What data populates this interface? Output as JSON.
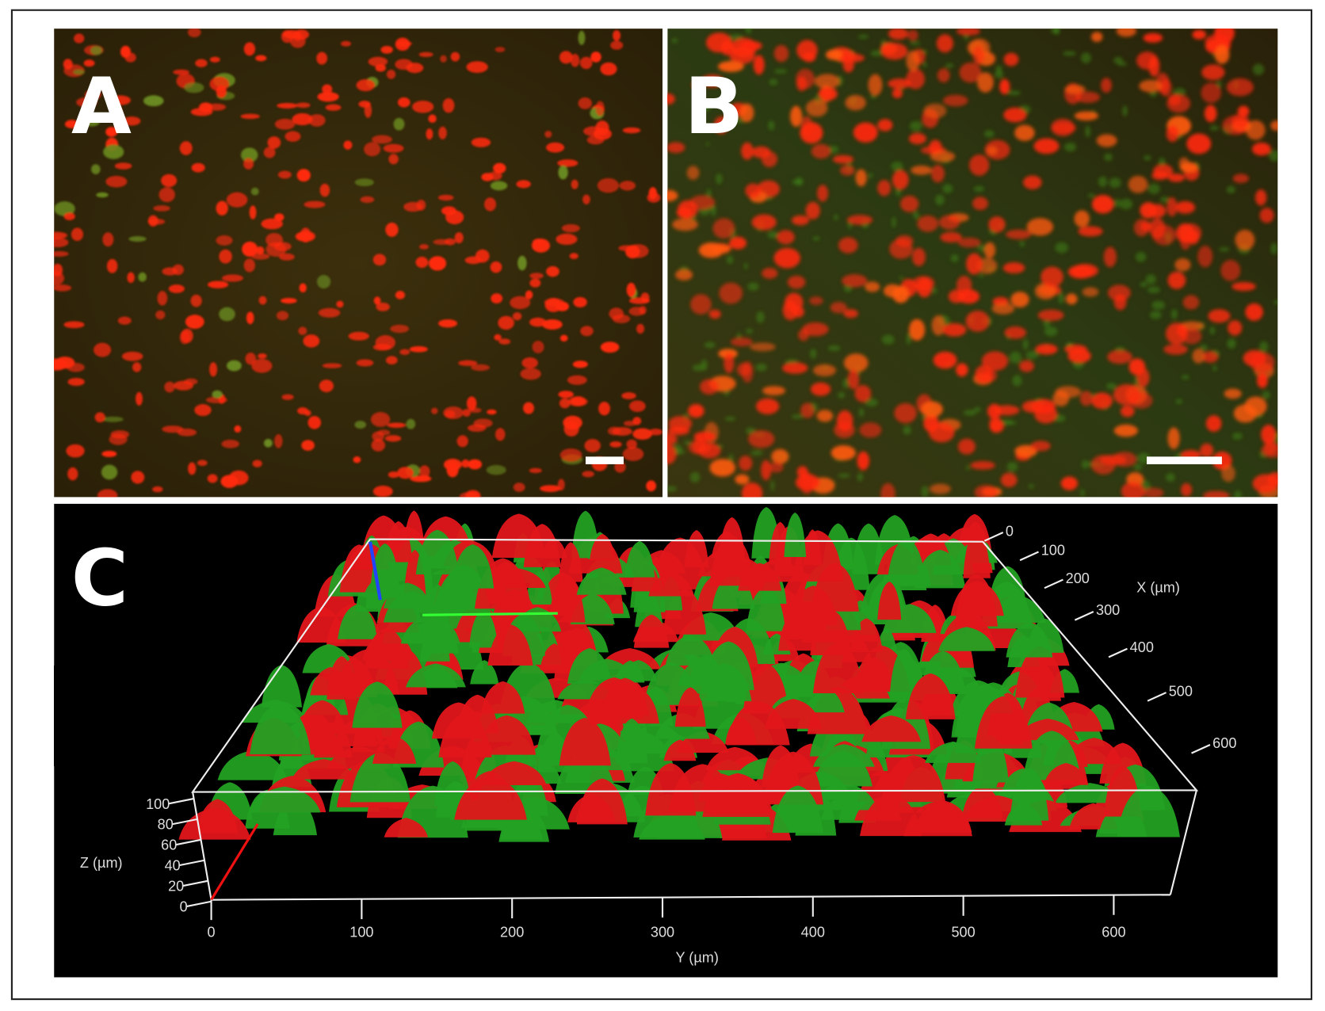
{
  "panels": [
    {
      "label": "A"
    },
    {
      "label": "B"
    },
    {
      "label": "C",
      "x_axis": {
        "label": "X (µm)",
        "ticks": [
          0,
          100,
          200,
          300,
          400,
          500,
          600
        ]
      },
      "y_axis": {
        "label": "Y (µm)",
        "ticks": [
          0,
          100,
          200,
          300,
          400,
          500,
          600
        ]
      },
      "z_axis": {
        "label": "Z (µm)",
        "ticks": [
          100,
          80,
          60,
          40,
          20,
          0
        ]
      }
    }
  ]
}
